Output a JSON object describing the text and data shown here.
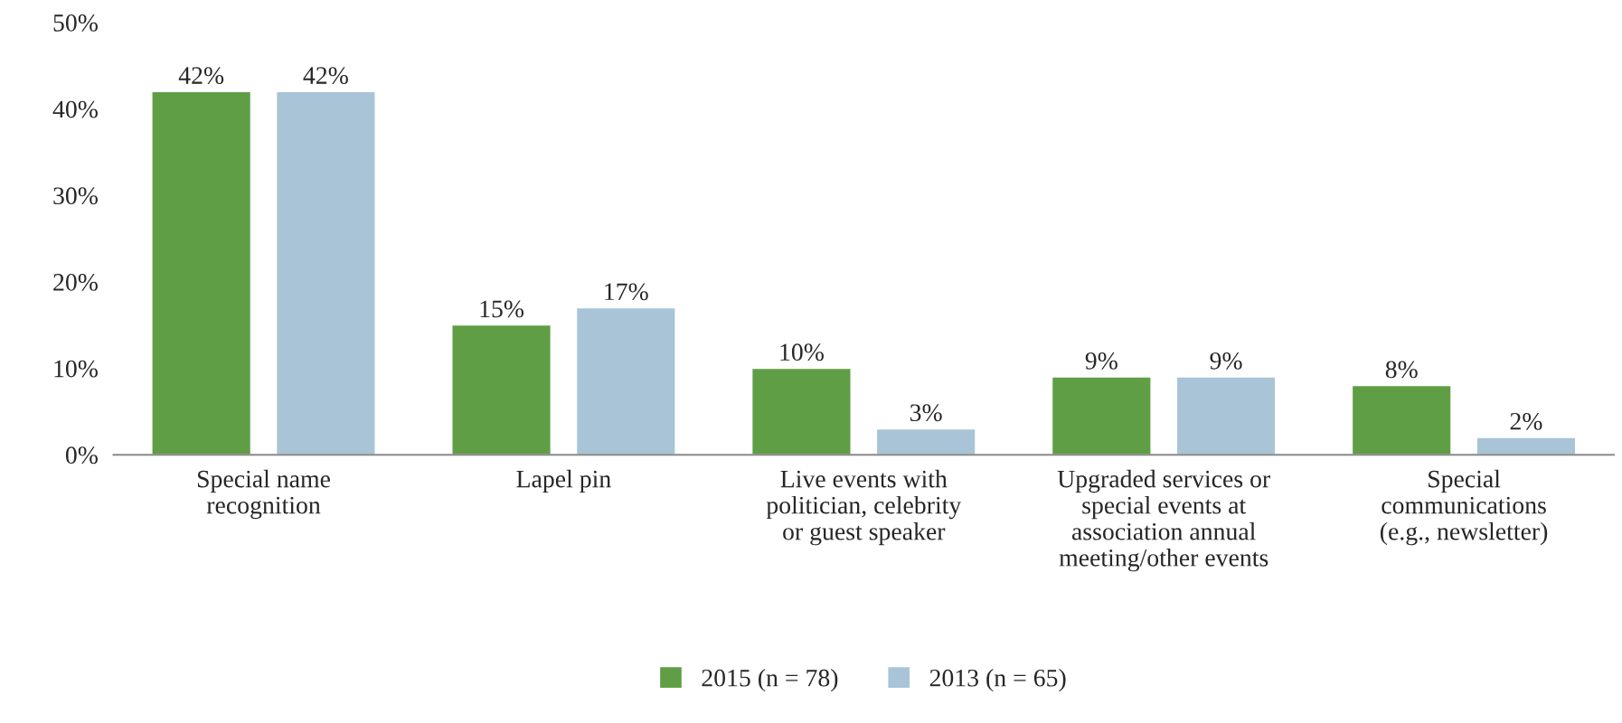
{
  "chart_data": {
    "type": "bar",
    "categories": [
      "Special name\nrecognition",
      "Lapel pin",
      "Live events with\npolitician, celebrity\nor guest speaker",
      "Upgraded services or\nspecial events at\nassociation annual\nmeeting/other events",
      "Special\ncommunications\n(e.g., newsletter)"
    ],
    "series": [
      {
        "name": "2015 (n = 78)",
        "color": "#5f9e45",
        "values": [
          42,
          15,
          10,
          9,
          8
        ],
        "value_labels": [
          "42%",
          "15%",
          "10%",
          "9%",
          "8%"
        ]
      },
      {
        "name": "2013 (n = 65)",
        "color": "#a8c4d6",
        "values": [
          42,
          17,
          3,
          9,
          2
        ],
        "value_labels": [
          "42%",
          "17%",
          "3%",
          "9%",
          "2%"
        ]
      }
    ],
    "ylim": [
      0,
      50
    ],
    "yticks": [
      {
        "value": 0,
        "label": "0%"
      },
      {
        "value": 10,
        "label": "10%"
      },
      {
        "value": 20,
        "label": "20%"
      },
      {
        "value": 30,
        "label": "30%"
      },
      {
        "value": 40,
        "label": "40%"
      },
      {
        "value": 50,
        "label": "50%"
      }
    ],
    "grid": false,
    "legend": "bottom"
  }
}
